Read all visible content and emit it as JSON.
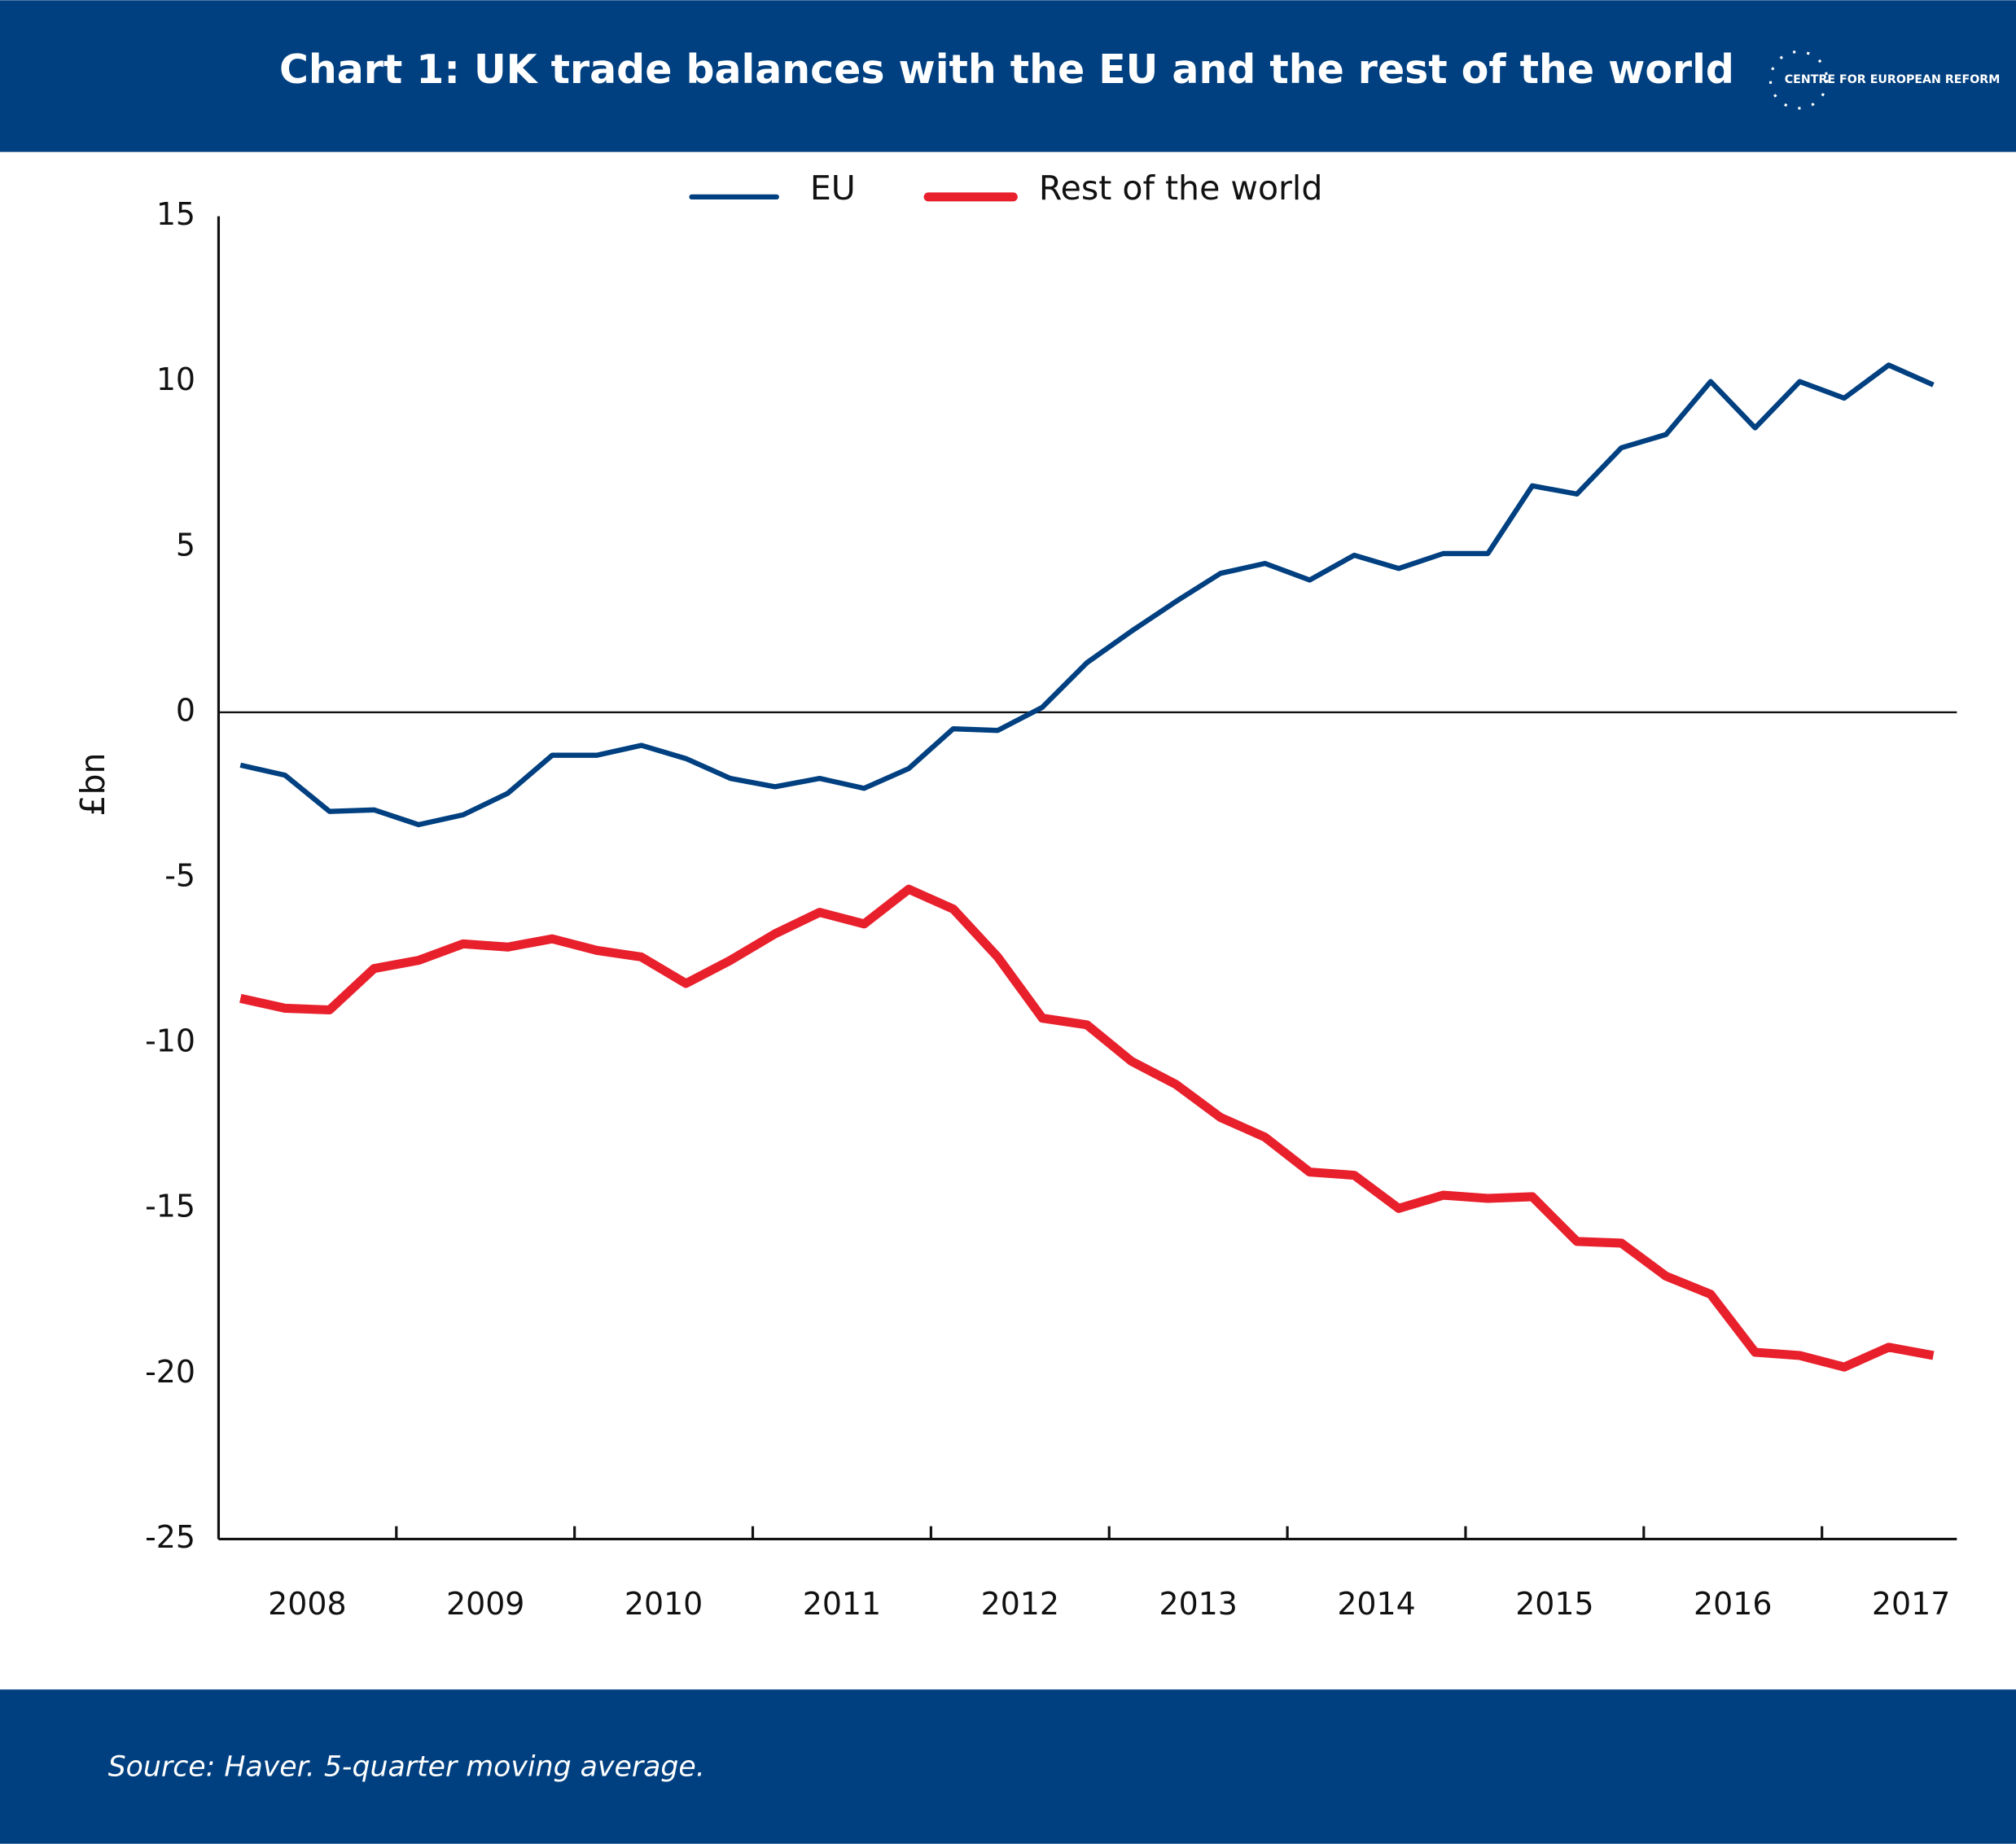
{
  "header": {
    "title": "Chart 1: UK trade balances with the EU and the rest of the world",
    "logo": "CENTRE FOR EUROPEAN REFORM"
  },
  "chart_data": {
    "type": "line",
    "y_label": "£bn",
    "categories": [
      null,
      "2008",
      null,
      null,
      null,
      "2009",
      null,
      null,
      null,
      "2010",
      null,
      null,
      null,
      "2011",
      null,
      null,
      null,
      "2012",
      null,
      null,
      null,
      "2013",
      null,
      null,
      null,
      "2014",
      null,
      null,
      null,
      "2015",
      null,
      null,
      null,
      "2016",
      null,
      null,
      null,
      "2017",
      null
    ],
    "series": [
      {
        "name": "EU",
        "color": "#004080",
        "values": [
          -1.6,
          -1.9,
          -3.0,
          -2.95,
          -3.4,
          -3.1,
          -2.45,
          -1.3,
          -1.3,
          -1.0,
          -1.4,
          -2.0,
          -2.25,
          -2.0,
          -2.3,
          -1.7,
          -0.5,
          -0.55,
          0.15,
          1.5,
          2.45,
          3.35,
          4.2,
          4.5,
          4.0,
          4.75,
          4.35,
          4.8,
          4.8,
          6.85,
          6.6,
          8.0,
          8.4,
          10.0,
          8.6,
          10.0,
          9.5,
          10.5,
          9.9
        ]
      },
      {
        "name": "Rest of the world",
        "color": "#e8202c",
        "values": [
          -8.65,
          -8.95,
          -9.0,
          -7.75,
          -7.5,
          -7.0,
          -7.1,
          -6.85,
          -7.2,
          -7.4,
          -8.2,
          -7.5,
          -6.7,
          -6.05,
          -6.4,
          -5.35,
          -5.95,
          -7.4,
          -9.25,
          -9.45,
          -10.55,
          -11.25,
          -12.25,
          -12.85,
          -13.9,
          -14.0,
          -15.0,
          -14.6,
          -14.7,
          -14.65,
          -16.0,
          -16.05,
          -17.05,
          -17.6,
          -19.35,
          -19.45,
          -19.8,
          -19.2,
          -19.45
        ]
      }
    ],
    "ylim": [
      -25,
      15
    ],
    "yticks": [
      15,
      10,
      5,
      0,
      -5,
      -10,
      -15,
      -20,
      -25
    ]
  },
  "footer": {
    "source": "Source: Haver. 5-quarter moving average."
  }
}
